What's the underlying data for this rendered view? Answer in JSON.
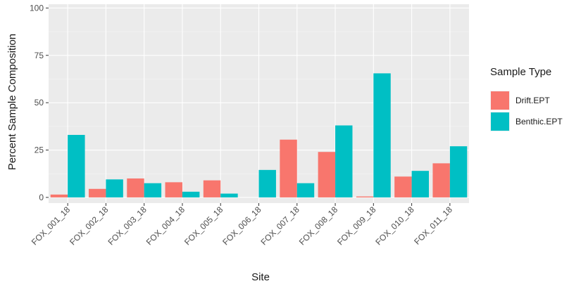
{
  "chart_data": {
    "type": "bar",
    "xlabel": "Site",
    "ylabel": "Percent Sample Composition",
    "ylim": [
      -3,
      102
    ],
    "yticks": [
      0,
      25,
      50,
      75,
      100
    ],
    "grid": true,
    "legend_title": "Sample Type",
    "legend_position": "right",
    "categories": [
      "FOX_001_18",
      "FOX_002_18",
      "FOX_003_18",
      "FOX_004_18",
      "FOX_005_18",
      "FOX_006_18",
      "FOX_007_18",
      "FOX_008_18",
      "FOX_009_18",
      "FOX_010_18",
      "FOX_011_18"
    ],
    "series": [
      {
        "name": "Drift.EPT",
        "color": "#F8766D",
        "values": [
          1.5,
          4.5,
          10,
          8,
          9,
          0,
          30.5,
          24,
          0.5,
          11,
          18
        ]
      },
      {
        "name": "Benthic.EPT",
        "color": "#00BFC4",
        "values": [
          33,
          9.5,
          7.5,
          3,
          2,
          14.5,
          7.5,
          38,
          65.5,
          14,
          27
        ]
      }
    ]
  }
}
